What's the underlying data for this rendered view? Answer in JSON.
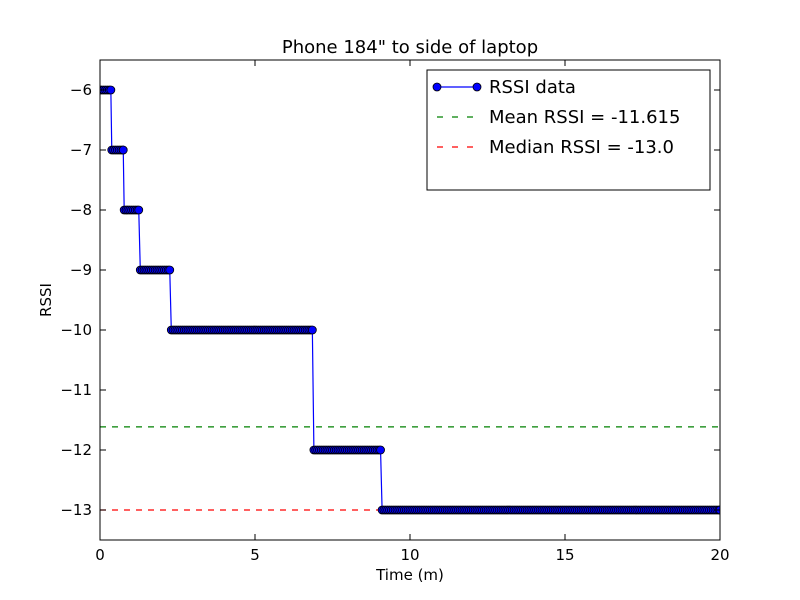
{
  "chart_data": {
    "type": "line",
    "title": "Phone 184\" to side of laptop",
    "xlabel": "Time (m)",
    "ylabel": "RSSI",
    "xlim": [
      0,
      20
    ],
    "ylim": [
      -13.5,
      -5.5
    ],
    "x_ticks": [
      {
        "value": 0,
        "label": "0"
      },
      {
        "value": 5,
        "label": "5"
      },
      {
        "value": 10,
        "label": "10"
      },
      {
        "value": 15,
        "label": "15"
      },
      {
        "value": 20,
        "label": "20"
      }
    ],
    "y_ticks": [
      {
        "value": -6,
        "label": "−6"
      },
      {
        "value": -7,
        "label": "−7"
      },
      {
        "value": -8,
        "label": "−8"
      },
      {
        "value": -9,
        "label": "−9"
      },
      {
        "value": -10,
        "label": "−10"
      },
      {
        "value": -11,
        "label": "−11"
      },
      {
        "value": -12,
        "label": "−12"
      },
      {
        "value": -13,
        "label": "−13"
      }
    ],
    "grid": false,
    "legend_position": "top-right",
    "series": [
      {
        "name": "RSSI data",
        "color": "#0000ff",
        "marker": "circle",
        "segments": [
          {
            "y": -6,
            "x_start": 0.0,
            "x_end": 0.35,
            "step": 0.06
          },
          {
            "y": -7,
            "x_start": 0.38,
            "x_end": 0.75,
            "step": 0.06
          },
          {
            "y": -8,
            "x_start": 0.78,
            "x_end": 1.25,
            "step": 0.06
          },
          {
            "y": -9,
            "x_start": 1.3,
            "x_end": 2.25,
            "step": 0.06
          },
          {
            "y": -10,
            "x_start": 2.3,
            "x_end": 6.85,
            "step": 0.06
          },
          {
            "y": -12,
            "x_start": 6.9,
            "x_end": 9.05,
            "step": 0.06
          },
          {
            "y": -13,
            "x_start": 9.1,
            "x_end": 20.0,
            "step": 0.06
          }
        ]
      }
    ],
    "reference_lines": [
      {
        "name": "Mean RSSI = -11.615",
        "y": -11.615,
        "color": "#008000",
        "style": "dashed"
      },
      {
        "name": "Median RSSI = -13.0",
        "y": -13.0,
        "color": "#ff0000",
        "style": "dashed"
      }
    ]
  }
}
